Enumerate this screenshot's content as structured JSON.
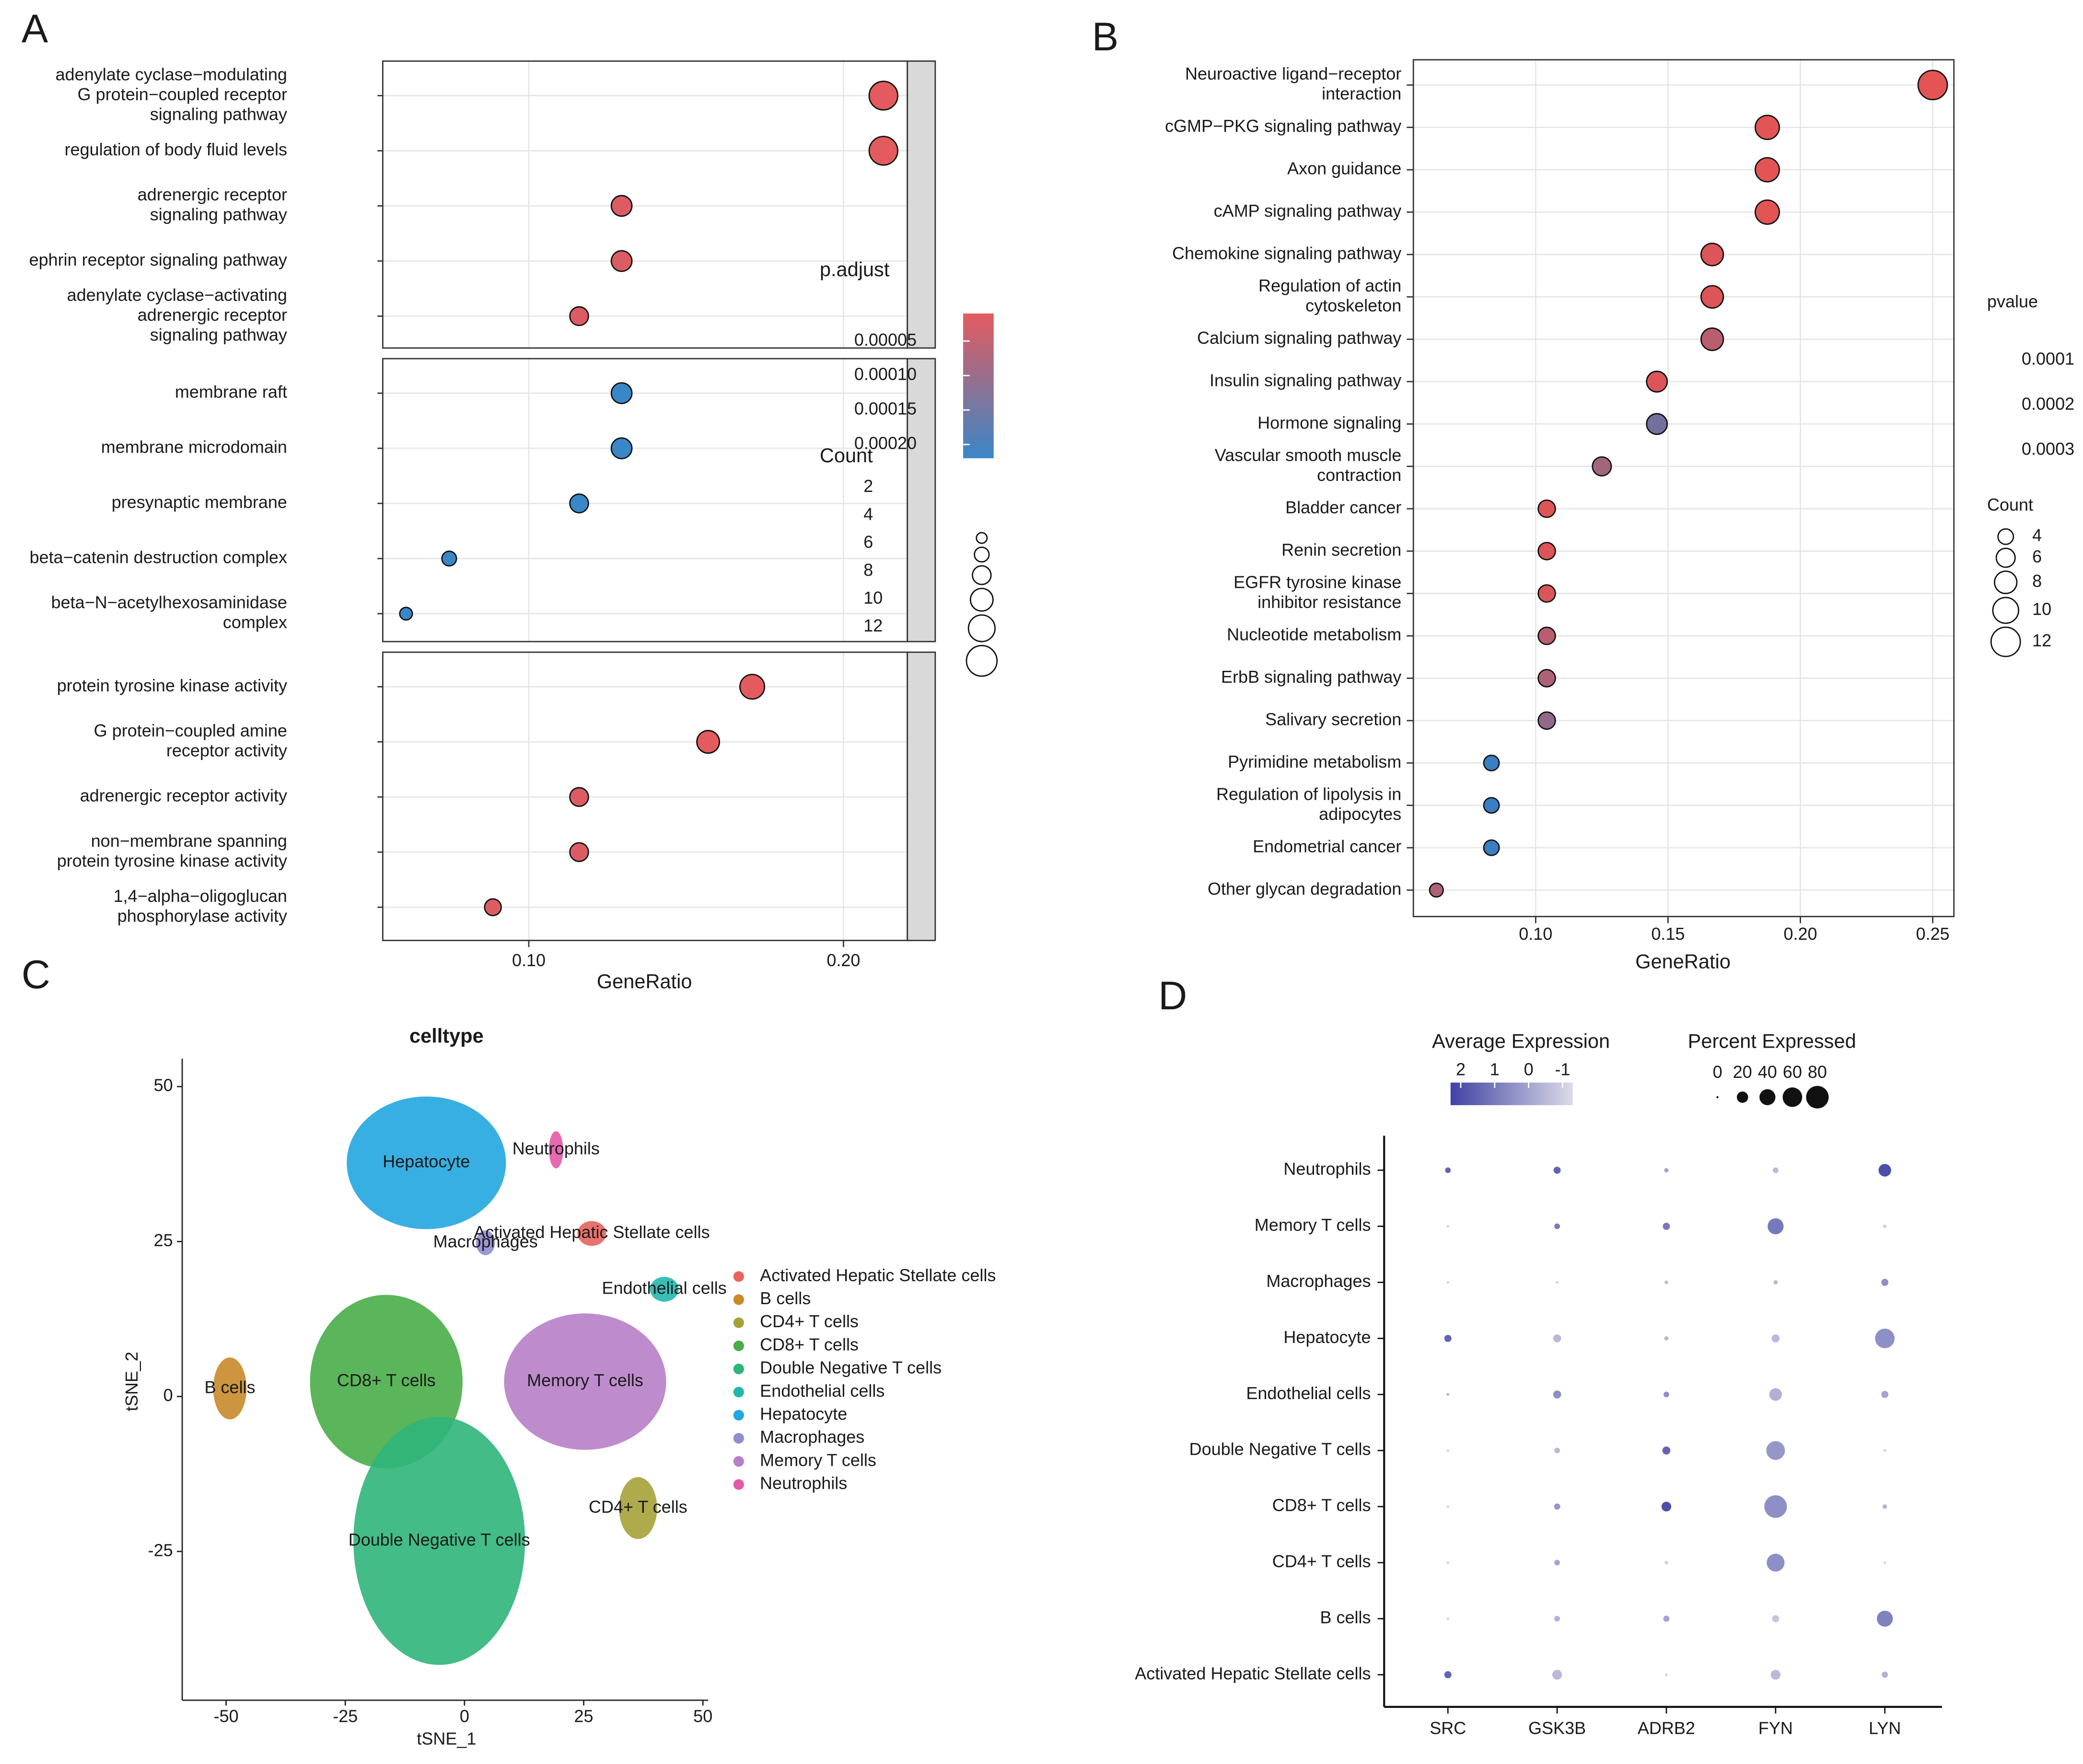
{
  "panel_labels": [
    "A",
    "B",
    "C",
    "D"
  ],
  "chart_data": [
    {
      "type": "dotplot_facet",
      "xlabel": "GeneRatio",
      "xlim": [
        0.0536,
        0.2203
      ],
      "xticks": [
        {
          "value": 0.1,
          "label": "0.10"
        },
        {
          "value": 0.2,
          "label": "0.20"
        }
      ],
      "color_title": "p.adjust",
      "clim": [
        1e-05,
        0.00022
      ],
      "cticks": [
        5e-05,
        {
          "value": 0.0001,
          "label": "0.00010"
        },
        0.00015,
        {
          "value": 0.0002,
          "label": "0.00020"
        }
      ],
      "color_low": "#e35b5e",
      "color_high": "#3a87c8",
      "size_title": "Count",
      "size_ticks": [
        2,
        4,
        6,
        8,
        10,
        12
      ],
      "facets": [
        {
          "categories": [
            [
              "adenylate cyclase−modulating",
              "G protein−coupled receptor",
              "signaling pathway"
            ],
            [
              "regulation of body fluid levels"
            ],
            [
              "adrenergic receptor",
              "signaling pathway"
            ],
            [
              "ephrin receptor signaling pathway"
            ],
            [
              "adenylate cyclase−activating",
              "adrenergic receptor",
              "signaling pathway"
            ]
          ],
          "values": [
            0.2127,
            0.2127,
            0.1295,
            0.1295,
            0.116
          ],
          "counts": [
            11,
            11,
            7,
            7,
            6
          ],
          "p_adjust": [
            1e-05,
            1e-05,
            2e-05,
            2e-05,
            2e-05
          ]
        },
        {
          "categories": [
            [
              "membrane raft"
            ],
            [
              "membrane microdomain"
            ],
            [
              "presynaptic membrane"
            ],
            [
              "beta−catenin destruction complex"
            ],
            [
              "beta−N−acetylhexosaminidase",
              "complex"
            ]
          ],
          "values": [
            0.1295,
            0.1295,
            0.116,
            0.0747,
            0.061
          ],
          "counts": [
            7,
            7,
            6,
            4,
            3
          ],
          "p_adjust": [
            0.00022,
            0.00022,
            0.00022,
            0.00022,
            0.00022
          ]
        },
        {
          "categories": [
            [
              "protein tyrosine kinase activity"
            ],
            [
              "G protein−coupled amine",
              "receptor activity"
            ],
            [
              "adrenergic receptor activity"
            ],
            [
              "non−membrane spanning",
              "protein tyrosine kinase activity"
            ],
            [
              "1,4−alpha−oligoglucan",
              "phosphorylase activity"
            ]
          ],
          "values": [
            0.171,
            0.157,
            0.116,
            0.116,
            0.0886
          ],
          "counts": [
            9,
            8,
            6,
            6,
            5
          ],
          "p_adjust": [
            1e-05,
            1e-05,
            2e-05,
            2e-05,
            2e-05
          ]
        }
      ]
    },
    {
      "type": "dotplot",
      "xlabel": "GeneRatio",
      "xlim": [
        0.0538,
        0.258
      ],
      "xticks": [
        {
          "value": 0.1,
          "label": "0.10"
        },
        0.15,
        {
          "value": 0.2,
          "label": "0.20"
        },
        0.25
      ],
      "color_title": "pvalue",
      "clim": [
        1e-05,
        0.0003
      ],
      "cticks": [
        0.0001,
        0.0002,
        0.0003
      ],
      "color_low": "#e35454",
      "color_high": "#3a7ec3",
      "size_title": "Count",
      "size_ticks": [
        4,
        6,
        8,
        10,
        12
      ],
      "categories": [
        [
          "Neuroactive ligand−receptor",
          "interaction"
        ],
        [
          "cGMP−PKG signaling pathway"
        ],
        [
          "Axon guidance"
        ],
        [
          "cAMP signaling pathway"
        ],
        [
          "Chemokine signaling pathway"
        ],
        [
          "Regulation of actin",
          "cytoskeleton"
        ],
        [
          "Calcium signaling pathway"
        ],
        [
          "Insulin signaling pathway"
        ],
        [
          "Hormone signaling"
        ],
        [
          "Vascular smooth muscle",
          "contraction"
        ],
        [
          "Bladder cancer"
        ],
        [
          "Renin secretion"
        ],
        [
          "EGFR tyrosine kinase",
          "inhibitor resistance"
        ],
        [
          "Nucleotide metabolism"
        ],
        [
          "ErbB signaling pathway"
        ],
        [
          "Salivary secretion"
        ],
        [
          "Pyrimidine metabolism"
        ],
        [
          "Regulation of lipolysis in",
          "adipocytes"
        ],
        [
          "Endometrial cancer"
        ],
        [
          "Other glycan degradation"
        ]
      ],
      "values": [
        0.25,
        0.1875,
        0.1875,
        0.1875,
        0.1667,
        0.1667,
        0.1667,
        0.1458,
        0.1458,
        0.125,
        0.1042,
        0.1042,
        0.1042,
        0.1042,
        0.1042,
        0.1042,
        0.0833,
        0.0833,
        0.0833,
        0.0625
      ],
      "counts": [
        12,
        9,
        9,
        9,
        8,
        8,
        8,
        7,
        7,
        6,
        5,
        5,
        5,
        5,
        5,
        5,
        4,
        4,
        4,
        3
      ],
      "pvalues": [
        1e-05,
        1e-05,
        1e-05,
        1e-05,
        2e-05,
        2e-05,
        8e-05,
        2e-05,
        0.0002,
        0.00012,
        2e-05,
        2e-05,
        3e-05,
        8e-05,
        0.0001,
        0.00015,
        0.0003,
        0.0003,
        0.0003,
        0.0001
      ]
    },
    {
      "type": "scatter_clusters",
      "title": "celltype",
      "xlabel": "tSNE_1",
      "ylabel": "tSNE_2",
      "xlim": [
        -59.2,
        51.1
      ],
      "ylim": [
        -49,
        54.5
      ],
      "xticks": [
        -50,
        -25,
        0,
        25,
        50
      ],
      "yticks": [
        -25,
        0,
        25,
        50
      ],
      "series": [
        {
          "name": "Activated Hepatic Stellate cells",
          "color": "#e8635d",
          "x": 26.7,
          "y": 26.3,
          "rx": 3,
          "ry": 2
        },
        {
          "name": "B cells",
          "color": "#c88a2b",
          "x": -49.2,
          "y": 1.3,
          "rx": 3.5,
          "ry": 5
        },
        {
          "name": "CD4+ T cells",
          "color": "#a6a23a",
          "x": 36.4,
          "y": -18,
          "rx": 4,
          "ry": 5
        },
        {
          "name": "CD8+ T cells",
          "color": "#49ad48",
          "x": -16.4,
          "y": 2.4,
          "rx": 16,
          "ry": 14
        },
        {
          "name": "Double Negative T cells",
          "color": "#2fb57a",
          "x": -5.3,
          "y": -23.3,
          "rx": 18,
          "ry": 20
        },
        {
          "name": "Endothelial cells",
          "color": "#22b8ae",
          "x": 41.9,
          "y": 17.3,
          "rx": 3,
          "ry": 2
        },
        {
          "name": "Hepatocyte",
          "color": "#22a6df",
          "x": -8,
          "y": 37.7,
          "rx": 16.7,
          "ry": 10.7
        },
        {
          "name": "Macrophages",
          "color": "#8f8cd0",
          "x": 4.4,
          "y": 24.8,
          "rx": 2,
          "ry": 2
        },
        {
          "name": "Memory T cells",
          "color": "#b77fc8",
          "x": 25.3,
          "y": 2.4,
          "rx": 17,
          "ry": 11
        },
        {
          "name": "Neutrophils",
          "color": "#e45aa8",
          "x": 19.2,
          "y": 39.8,
          "rx": 1.5,
          "ry": 3
        }
      ]
    },
    {
      "type": "dotplot_expression",
      "color_title": "Average Expression",
      "size_title": "Percent Expressed",
      "clim": [
        -1.3,
        2.3
      ],
      "color_ticks": [
        2,
        1,
        0,
        -1
      ],
      "size_ticks": [
        0,
        20,
        40,
        60,
        80
      ],
      "color_low": "#dcdbe8",
      "color_high": "#3f42a3",
      "genes": [
        "SRC",
        "GSK3B",
        "ADRB2",
        "FYN",
        "LYN"
      ],
      "categories": [
        "Neutrophils",
        "Memory T cells",
        "Macrophages",
        "Hepatocyte",
        "Endothelial cells",
        "Double Negative T cells",
        "CD8+ T cells",
        "CD4+ T cells",
        "B cells",
        "Activated Hepatic Stellate cells"
      ],
      "percent_expressed": [
        [
          5,
          8,
          3,
          5,
          25
        ],
        [
          1,
          5,
          8,
          40,
          2
        ],
        [
          1,
          1,
          2,
          3,
          8
        ],
        [
          8,
          10,
          3,
          10,
          60
        ],
        [
          1,
          10,
          5,
          25,
          8
        ],
        [
          1,
          5,
          10,
          55,
          1
        ],
        [
          1,
          6,
          15,
          80,
          3
        ],
        [
          1,
          5,
          2,
          50,
          1
        ],
        [
          1,
          5,
          6,
          8,
          40
        ],
        [
          8,
          15,
          1,
          15,
          6
        ]
      ],
      "average_expression": [
        [
          1.5,
          1.5,
          0,
          -0.5,
          2
        ],
        [
          -1,
          1,
          1,
          1,
          -1
        ],
        [
          -1,
          -1,
          -0.5,
          -0.5,
          0.5
        ],
        [
          1.5,
          -0.5,
          -0.5,
          -0.5,
          0.5
        ],
        [
          0,
          0.5,
          0.5,
          -0.3,
          0
        ],
        [
          -1,
          -0.5,
          1.5,
          0.3,
          -1
        ],
        [
          -1,
          0.3,
          2,
          0.5,
          -0.3
        ],
        [
          -1,
          0,
          -1,
          0.5,
          -1
        ],
        [
          -1,
          -0.3,
          0,
          -0.8,
          0.8
        ],
        [
          1.5,
          -0.5,
          -1,
          -0.5,
          -0.3
        ]
      ]
    }
  ]
}
